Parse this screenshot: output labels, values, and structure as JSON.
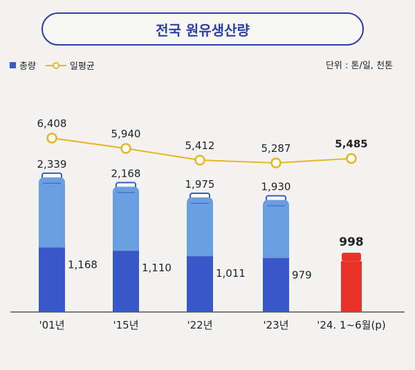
{
  "title": "전국 원유생산량",
  "legend": {
    "bar_label": "총량",
    "line_label": "일평균"
  },
  "unit": "단위 : 톤/일, 천톤",
  "colors": {
    "bar_dark": "#3a57c7",
    "bar_light": "#6b9ee0",
    "highlight": "#e93328",
    "line": "#e6b521"
  },
  "chart_data": {
    "type": "bar",
    "categories": [
      "'01년",
      "'15년",
      "'22년",
      "'23년",
      "'24. 1~6월(p)"
    ],
    "series": [
      {
        "name": "총량",
        "values": [
          1168,
          1110,
          1011,
          979,
          998
        ]
      },
      {
        "name": "일평균",
        "values": [
          6408,
          5940,
          5412,
          5287,
          5485
        ]
      }
    ],
    "bar_caps": [
      2339,
      2168,
      1975,
      1930,
      null
    ],
    "value_labels": {
      "bars": [
        "1,168",
        "1,110",
        "1,011",
        "979",
        "998"
      ],
      "line": [
        "6,408",
        "5,940",
        "5,412",
        "5,287",
        "5,485"
      ],
      "caps": [
        "2,339",
        "2,168",
        "1,975",
        "1,930"
      ]
    },
    "highlight_index": 4
  }
}
